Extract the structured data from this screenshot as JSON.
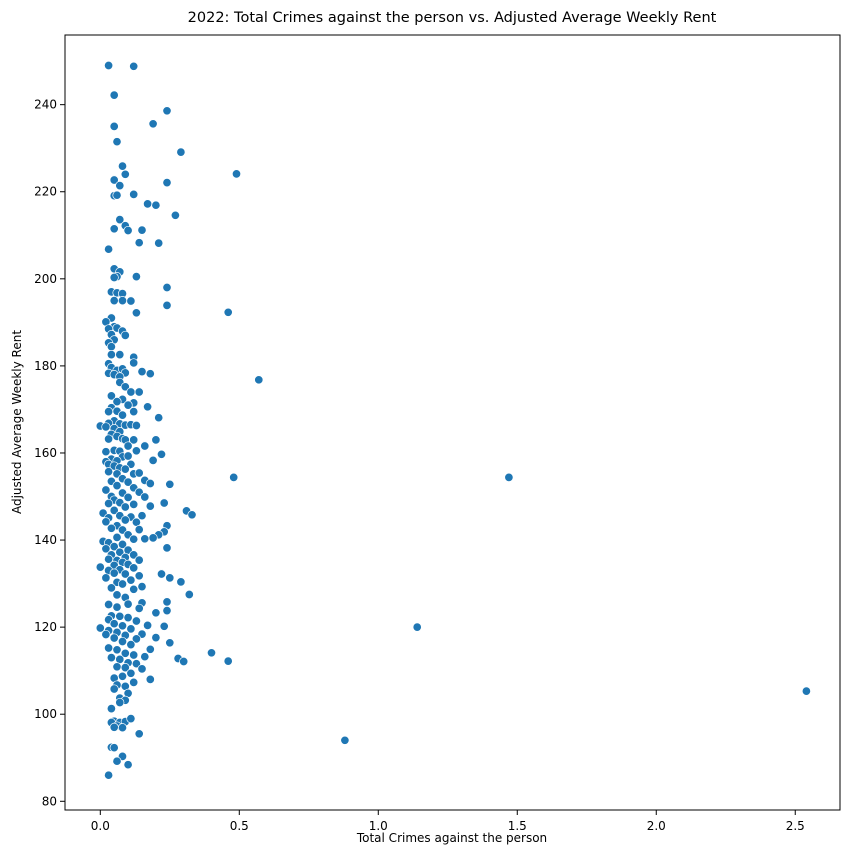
{
  "chart_data": {
    "type": "scatter",
    "title": "2022: Total Crimes against the person vs. Adjusted Average Weekly Rent",
    "xlabel": "Total Crimes against the person",
    "ylabel": "Adjusted Average Weekly Rent",
    "xlim": [
      -0.127,
      2.661
    ],
    "ylim": [
      78.0,
      256.0
    ],
    "xticks": [
      0.0,
      0.5,
      1.0,
      1.5,
      2.0,
      2.5
    ],
    "xtick_labels": [
      "0.0",
      "0.5",
      "1.0",
      "1.5",
      "2.0",
      "2.5"
    ],
    "yticks": [
      80,
      100,
      120,
      140,
      160,
      180,
      200,
      220,
      240
    ],
    "ytick_labels": [
      "80",
      "100",
      "120",
      "140",
      "160",
      "180",
      "200",
      "220",
      "240"
    ],
    "grid": false,
    "marker_color": "#1f77b4",
    "marker_edge_color": "#ffffff",
    "points": [
      [
        0.03,
        249.0
      ],
      [
        0.12,
        248.8
      ],
      [
        0.05,
        242.2
      ],
      [
        0.24,
        238.6
      ],
      [
        0.05,
        235.0
      ],
      [
        0.19,
        235.6
      ],
      [
        0.06,
        231.5
      ],
      [
        0.29,
        229.1
      ],
      [
        0.08,
        225.9
      ],
      [
        0.49,
        224.1
      ],
      [
        0.09,
        224.0
      ],
      [
        0.05,
        222.7
      ],
      [
        0.24,
        222.1
      ],
      [
        0.07,
        221.4
      ],
      [
        0.05,
        219.1
      ],
      [
        0.06,
        219.2
      ],
      [
        0.12,
        219.4
      ],
      [
        0.17,
        217.2
      ],
      [
        0.2,
        216.9
      ],
      [
        0.27,
        214.6
      ],
      [
        0.07,
        213.6
      ],
      [
        0.09,
        212.2
      ],
      [
        0.05,
        211.5
      ],
      [
        0.1,
        211.1
      ],
      [
        0.15,
        211.2
      ],
      [
        0.14,
        208.3
      ],
      [
        0.21,
        208.2
      ],
      [
        0.03,
        206.8
      ],
      [
        0.05,
        202.3
      ],
      [
        0.07,
        201.6
      ],
      [
        0.06,
        200.5
      ],
      [
        0.05,
        200.3
      ],
      [
        0.13,
        200.5
      ],
      [
        0.24,
        198.0
      ],
      [
        0.04,
        197.0
      ],
      [
        0.06,
        196.8
      ],
      [
        0.08,
        196.6
      ],
      [
        0.05,
        195.0
      ],
      [
        0.08,
        195.0
      ],
      [
        0.11,
        194.9
      ],
      [
        0.24,
        193.9
      ],
      [
        0.13,
        192.2
      ],
      [
        0.46,
        192.3
      ],
      [
        0.04,
        191.0
      ],
      [
        0.02,
        190.1
      ],
      [
        0.05,
        189.0
      ],
      [
        0.06,
        188.7
      ],
      [
        0.03,
        188.5
      ],
      [
        0.08,
        188.0
      ],
      [
        0.04,
        187.2
      ],
      [
        0.09,
        187.0
      ],
      [
        0.05,
        186.0
      ],
      [
        0.03,
        185.3
      ],
      [
        0.04,
        184.4
      ],
      [
        0.04,
        182.6
      ],
      [
        0.07,
        182.6
      ],
      [
        0.12,
        182.0
      ],
      [
        0.12,
        180.7
      ],
      [
        0.03,
        180.5
      ],
      [
        0.04,
        179.6
      ],
      [
        0.06,
        179.0
      ],
      [
        0.08,
        179.3
      ],
      [
        0.03,
        178.3
      ],
      [
        0.09,
        178.4
      ],
      [
        0.15,
        178.7
      ],
      [
        0.18,
        178.2
      ],
      [
        0.05,
        178.0
      ],
      [
        0.07,
        177.5
      ],
      [
        0.57,
        176.8
      ],
      [
        0.07,
        176.2
      ],
      [
        0.09,
        175.2
      ],
      [
        0.11,
        174.0
      ],
      [
        0.14,
        174.0
      ],
      [
        0.04,
        173.1
      ],
      [
        0.08,
        172.3
      ],
      [
        0.12,
        171.5
      ],
      [
        0.06,
        171.8
      ],
      [
        0.1,
        171.0
      ],
      [
        0.17,
        170.6
      ],
      [
        0.04,
        170.4
      ],
      [
        0.06,
        169.6
      ],
      [
        0.12,
        169.5
      ],
      [
        0.03,
        169.5
      ],
      [
        0.08,
        168.7
      ],
      [
        0.21,
        168.1
      ],
      [
        0.05,
        167.4
      ],
      [
        0.03,
        166.8
      ],
      [
        0.07,
        166.7
      ],
      [
        0.09,
        166.4
      ],
      [
        0.11,
        166.5
      ],
      [
        0.13,
        166.3
      ],
      [
        0.0,
        166.2
      ],
      [
        0.02,
        166.0
      ],
      [
        0.05,
        165.6
      ],
      [
        0.07,
        164.9
      ],
      [
        0.04,
        164.3
      ],
      [
        0.06,
        163.8
      ],
      [
        0.08,
        163.3
      ],
      [
        0.03,
        163.2
      ],
      [
        0.09,
        163.0
      ],
      [
        0.12,
        163.0
      ],
      [
        0.2,
        163.0
      ],
      [
        0.1,
        161.6
      ],
      [
        0.16,
        161.6
      ],
      [
        0.05,
        160.6
      ],
      [
        0.07,
        160.4
      ],
      [
        0.02,
        160.3
      ],
      [
        0.13,
        160.5
      ],
      [
        0.22,
        159.7
      ],
      [
        0.08,
        159.1
      ],
      [
        0.1,
        159.3
      ],
      [
        0.04,
        158.6
      ],
      [
        0.06,
        158.2
      ],
      [
        0.02,
        158.0
      ],
      [
        0.19,
        158.3
      ],
      [
        0.03,
        157.4
      ],
      [
        0.11,
        157.4
      ],
      [
        0.05,
        157.0
      ],
      [
        0.07,
        156.6
      ],
      [
        0.09,
        156.3
      ],
      [
        0.03,
        155.7
      ],
      [
        0.12,
        155.2
      ],
      [
        0.06,
        155.2
      ],
      [
        0.14,
        155.4
      ],
      [
        0.48,
        154.4
      ],
      [
        1.47,
        154.4
      ],
      [
        0.08,
        154.1
      ],
      [
        0.16,
        153.7
      ],
      [
        0.04,
        153.5
      ],
      [
        0.1,
        153.3
      ],
      [
        0.18,
        153.0
      ],
      [
        0.25,
        152.8
      ],
      [
        0.06,
        152.5
      ],
      [
        0.12,
        152.0
      ],
      [
        0.02,
        151.5
      ],
      [
        0.14,
        151.0
      ],
      [
        0.08,
        150.8
      ],
      [
        0.04,
        150.0
      ],
      [
        0.1,
        149.8
      ],
      [
        0.16,
        149.9
      ],
      [
        0.05,
        149.2
      ],
      [
        0.07,
        148.6
      ],
      [
        0.03,
        148.4
      ],
      [
        0.12,
        148.2
      ],
      [
        0.23,
        148.5
      ],
      [
        0.18,
        147.8
      ],
      [
        0.09,
        147.6
      ],
      [
        0.31,
        146.7
      ],
      [
        0.05,
        146.8
      ],
      [
        0.01,
        146.2
      ],
      [
        0.33,
        145.8
      ],
      [
        0.07,
        145.6
      ],
      [
        0.11,
        145.3
      ],
      [
        0.15,
        145.6
      ],
      [
        0.03,
        145.1
      ],
      [
        0.09,
        144.6
      ],
      [
        0.02,
        144.2
      ],
      [
        0.13,
        144.1
      ],
      [
        0.24,
        143.3
      ],
      [
        0.06,
        143.3
      ],
      [
        0.04,
        142.7
      ],
      [
        0.08,
        142.3
      ],
      [
        0.14,
        142.4
      ],
      [
        0.23,
        141.9
      ],
      [
        0.1,
        141.2
      ],
      [
        0.21,
        141.2
      ],
      [
        0.06,
        140.6
      ],
      [
        0.16,
        140.3
      ],
      [
        0.19,
        140.5
      ],
      [
        0.12,
        140.2
      ],
      [
        0.01,
        139.7
      ],
      [
        0.03,
        139.4
      ],
      [
        0.08,
        139.0
      ],
      [
        0.05,
        138.5
      ],
      [
        0.24,
        138.2
      ],
      [
        0.02,
        138.0
      ],
      [
        0.1,
        137.7
      ],
      [
        0.07,
        137.2
      ],
      [
        0.04,
        136.6
      ],
      [
        0.12,
        136.6
      ],
      [
        0.09,
        136.0
      ],
      [
        0.03,
        135.6
      ],
      [
        0.06,
        135.3
      ],
      [
        0.14,
        135.4
      ],
      [
        0.08,
        134.9
      ],
      [
        0.1,
        134.4
      ],
      [
        0.05,
        134.2
      ],
      [
        0.0,
        133.8
      ],
      [
        0.12,
        133.6
      ],
      [
        0.07,
        133.2
      ],
      [
        0.03,
        133.0
      ],
      [
        0.05,
        132.4
      ],
      [
        0.09,
        132.2
      ],
      [
        0.22,
        132.2
      ],
      [
        0.14,
        131.8
      ],
      [
        0.02,
        131.3
      ],
      [
        0.25,
        131.3
      ],
      [
        0.11,
        130.8
      ],
      [
        0.06,
        130.3
      ],
      [
        0.29,
        130.4
      ],
      [
        0.08,
        129.9
      ],
      [
        0.15,
        129.3
      ],
      [
        0.04,
        129.0
      ],
      [
        0.12,
        128.7
      ],
      [
        0.32,
        127.5
      ],
      [
        0.06,
        127.4
      ],
      [
        0.09,
        126.8
      ],
      [
        0.24,
        125.8
      ],
      [
        0.15,
        125.6
      ],
      [
        0.03,
        125.2
      ],
      [
        0.1,
        125.3
      ],
      [
        0.06,
        124.6
      ],
      [
        0.14,
        124.3
      ],
      [
        0.24,
        123.8
      ],
      [
        0.2,
        123.3
      ],
      [
        0.04,
        122.6
      ],
      [
        0.07,
        122.5
      ],
      [
        0.1,
        122.2
      ],
      [
        0.03,
        121.7
      ],
      [
        0.13,
        121.4
      ],
      [
        0.05,
        120.8
      ],
      [
        0.08,
        120.3
      ],
      [
        0.0,
        119.8
      ],
      [
        0.17,
        120.4
      ],
      [
        0.23,
        120.2
      ],
      [
        1.14,
        120.0
      ],
      [
        0.11,
        119.6
      ],
      [
        0.03,
        119.2
      ],
      [
        0.06,
        118.8
      ],
      [
        0.02,
        118.3
      ],
      [
        0.09,
        118.1
      ],
      [
        0.15,
        118.4
      ],
      [
        0.2,
        117.6
      ],
      [
        0.05,
        117.5
      ],
      [
        0.13,
        117.3
      ],
      [
        0.08,
        116.7
      ],
      [
        0.25,
        116.4
      ],
      [
        0.11,
        116.0
      ],
      [
        0.03,
        115.2
      ],
      [
        0.06,
        114.8
      ],
      [
        0.18,
        114.9
      ],
      [
        0.4,
        114.1
      ],
      [
        0.09,
        114.0
      ],
      [
        0.12,
        113.6
      ],
      [
        0.04,
        113.0
      ],
      [
        0.16,
        113.2
      ],
      [
        0.07,
        112.6
      ],
      [
        0.28,
        112.8
      ],
      [
        0.46,
        112.2
      ],
      [
        0.3,
        112.1
      ],
      [
        0.1,
        111.8
      ],
      [
        0.13,
        111.6
      ],
      [
        0.06,
        110.9
      ],
      [
        0.09,
        110.7
      ],
      [
        0.15,
        110.4
      ],
      [
        0.11,
        109.4
      ],
      [
        0.08,
        108.7
      ],
      [
        0.05,
        108.3
      ],
      [
        0.18,
        108.0
      ],
      [
        0.12,
        107.3
      ],
      [
        0.06,
        106.7
      ],
      [
        0.09,
        106.4
      ],
      [
        0.05,
        105.8
      ],
      [
        2.54,
        105.3
      ],
      [
        0.1,
        104.8
      ],
      [
        0.07,
        103.7
      ],
      [
        0.09,
        103.2
      ],
      [
        0.07,
        102.7
      ],
      [
        0.04,
        101.3
      ],
      [
        0.05,
        98.4
      ],
      [
        0.07,
        98.1
      ],
      [
        0.09,
        98.3
      ],
      [
        0.11,
        99.0
      ],
      [
        0.04,
        98.1
      ],
      [
        0.06,
        97.3
      ],
      [
        0.05,
        97.0
      ],
      [
        0.08,
        96.9
      ],
      [
        0.14,
        95.5
      ],
      [
        0.88,
        94.0
      ],
      [
        0.04,
        92.4
      ],
      [
        0.05,
        92.3
      ],
      [
        0.08,
        90.3
      ],
      [
        0.06,
        89.2
      ],
      [
        0.1,
        88.4
      ],
      [
        0.03,
        86.0
      ]
    ]
  }
}
